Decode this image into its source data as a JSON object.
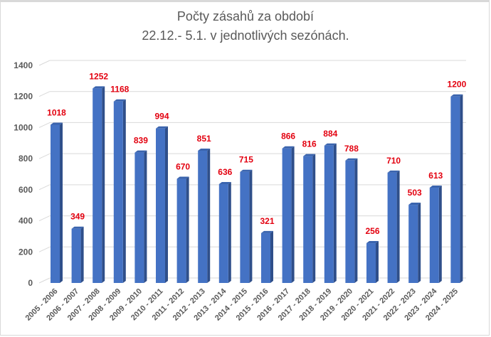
{
  "chart_data": {
    "type": "bar",
    "title": "Počty zásahů za období",
    "subtitle": "22.12.- 5.1. v jednotlivých sezónách.",
    "xlabel": "",
    "ylabel": "",
    "ylim": [
      0,
      1400
    ],
    "yticks": [
      0,
      200,
      400,
      600,
      800,
      1000,
      1200,
      1400
    ],
    "grid": true,
    "legend": "none",
    "style": "3d-column",
    "bar_color": "#4472c4",
    "bar_side_color": "#2f4f8a",
    "label_color": "#e3000f",
    "categories": [
      "2005 - 2006",
      "2006 - 2007",
      "2007 - 2008",
      "2008 - 2009",
      "2009 - 2010",
      "2010 - 2011",
      "2011 - 2012",
      "2012 - 2013",
      "2013 - 2014",
      "2014 - 2015",
      "2015 - 2016",
      "2016 - 2017",
      "2017 - 2018",
      "2018 - 2019",
      "2019 - 2020",
      "2020 - 2021",
      "2021 - 2022",
      "2022 - 2023",
      "2023 - 2024",
      "2024 - 2025"
    ],
    "values": [
      1018,
      349,
      1252,
      1168,
      839,
      994,
      670,
      851,
      636,
      715,
      321,
      866,
      816,
      884,
      788,
      256,
      710,
      503,
      613,
      1200
    ]
  }
}
